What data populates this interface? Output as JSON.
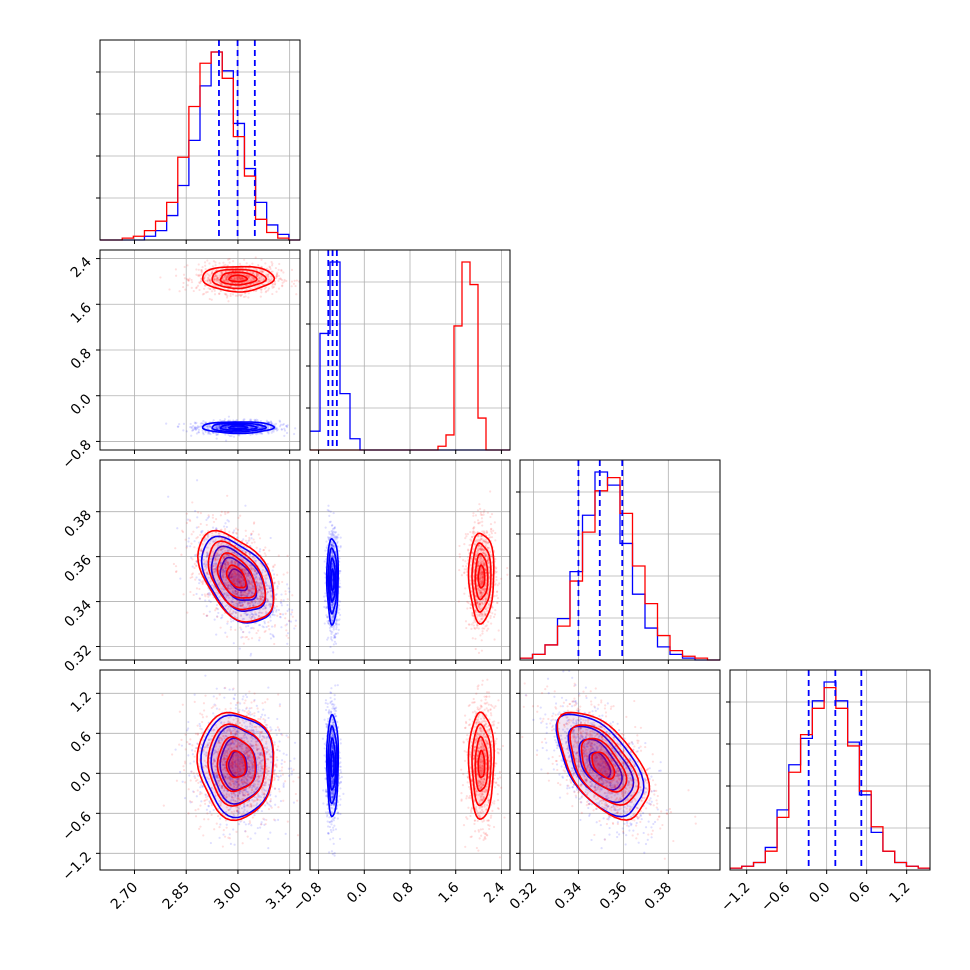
{
  "chart_data": {
    "type": "corner",
    "series": [
      {
        "name": "",
        "color": "#0000ff"
      },
      {
        "name": "",
        "color": "#ff0000"
      }
    ],
    "grid": true,
    "parameters": [
      {
        "index": 0,
        "range": [
          2.6,
          3.18
        ],
        "ticks": [
          "2.70",
          "2.85",
          "3.00",
          "3.15"
        ],
        "tick_values": [
          2.7,
          2.85,
          3.0,
          3.15
        ]
      },
      {
        "index": 1,
        "range": [
          -0.95,
          2.55
        ],
        "ticks": [
          "−0.8",
          "0.0",
          "0.8",
          "1.6",
          "2.4"
        ],
        "tick_values": [
          -0.8,
          0.0,
          0.8,
          1.6,
          2.4
        ]
      },
      {
        "index": 2,
        "range": [
          0.314,
          0.403
        ],
        "ticks": [
          "0.32",
          "0.34",
          "0.36",
          "0.38"
        ],
        "tick_values": [
          0.32,
          0.34,
          0.36,
          0.38
        ]
      },
      {
        "index": 3,
        "range": [
          -1.45,
          1.55
        ],
        "ticks": [
          "−1.2",
          "−0.6",
          "0.0",
          "0.6",
          "1.2"
        ],
        "tick_values": [
          -1.2,
          -0.6,
          0.0,
          0.6,
          1.2
        ]
      }
    ],
    "quantiles_blue": [
      [
        2.945,
        2.999,
        3.049
      ],
      [
        -0.63,
        -0.555,
        -0.48
      ],
      [
        0.34,
        0.3495,
        0.3595
      ],
      [
        -0.27,
        0.13,
        0.52
      ]
    ],
    "histograms": [
      {
        "param": 0,
        "blue": [
          0,
          0,
          0,
          0,
          2,
          5,
          13,
          29,
          53,
          82,
          100,
          90,
          62,
          38,
          20,
          8,
          3,
          0
        ],
        "red": [
          0,
          0,
          1,
          2,
          5,
          10,
          20,
          44,
          71,
          94,
          100,
          86,
          55,
          34,
          11,
          4,
          1,
          0
        ]
      },
      {
        "param": 1,
        "blue": [
          10,
          62,
          100,
          30,
          6,
          0,
          0,
          0,
          0,
          0,
          0,
          0,
          0,
          0,
          0,
          0,
          0,
          0,
          0,
          0
        ],
        "red": [
          0,
          0,
          0,
          0,
          0,
          0,
          0,
          0,
          0,
          0,
          0,
          0,
          0,
          0,
          0,
          0,
          2,
          8,
          66,
          100,
          88,
          17,
          0,
          0,
          0
        ]
      },
      {
        "param": 2,
        "blue": [
          1,
          3,
          8,
          22,
          47,
          77,
          100,
          93,
          62,
          35,
          17,
          7,
          3,
          1,
          0,
          0
        ],
        "red": [
          1,
          3,
          8,
          18,
          42,
          68,
          90,
          97,
          78,
          50,
          30,
          13,
          5,
          2,
          1,
          0
        ]
      },
      {
        "param": 3,
        "blue": [
          1,
          2,
          4,
          12,
          32,
          56,
          70,
          90,
          100,
          90,
          68,
          40,
          20,
          10,
          4,
          2,
          1
        ],
        "red": [
          1,
          2,
          4,
          10,
          28,
          52,
          72,
          86,
          97,
          86,
          66,
          42,
          23,
          10,
          4,
          2,
          1
        ]
      }
    ],
    "clouds_2d": [
      {
        "row": 1,
        "col": 0,
        "blue": {
          "cx": 3.0,
          "cy": -0.555,
          "sx": 0.052,
          "sy": 0.05,
          "rho": 0.0
        },
        "red": {
          "cx": 3.0,
          "cy": 2.05,
          "sx": 0.052,
          "sy": 0.11,
          "rho": 0.0
        }
      },
      {
        "row": 2,
        "col": 0,
        "blue": {
          "cx": 3.0,
          "cy": 0.3495,
          "sx": 0.052,
          "sy": 0.0095,
          "rho": -0.45
        },
        "red": {
          "cx": 2.995,
          "cy": 0.351,
          "sx": 0.055,
          "sy": 0.01,
          "rho": -0.45
        }
      },
      {
        "row": 2,
        "col": 1,
        "blue": {
          "cx": -0.555,
          "cy": 0.3495,
          "sx": 0.05,
          "sy": 0.0095,
          "rho": 0.0
        },
        "red": {
          "cx": 2.05,
          "cy": 0.351,
          "sx": 0.11,
          "sy": 0.01,
          "rho": 0.0
        }
      },
      {
        "row": 3,
        "col": 0,
        "blue": {
          "cx": 3.0,
          "cy": 0.13,
          "sx": 0.052,
          "sy": 0.38,
          "rho": -0.05
        },
        "red": {
          "cx": 2.995,
          "cy": 0.13,
          "sx": 0.055,
          "sy": 0.4,
          "rho": -0.05
        }
      },
      {
        "row": 3,
        "col": 1,
        "blue": {
          "cx": -0.555,
          "cy": 0.13,
          "sx": 0.05,
          "sy": 0.38,
          "rho": 0.0
        },
        "red": {
          "cx": 2.05,
          "cy": 0.13,
          "sx": 0.11,
          "sy": 0.4,
          "rho": 0.0
        }
      },
      {
        "row": 3,
        "col": 2,
        "blue": {
          "cx": 0.3495,
          "cy": 0.13,
          "sx": 0.0095,
          "sy": 0.38,
          "rho": -0.55
        },
        "red": {
          "cx": 0.351,
          "cy": 0.12,
          "sx": 0.01,
          "sy": 0.4,
          "rho": -0.55
        }
      }
    ]
  }
}
